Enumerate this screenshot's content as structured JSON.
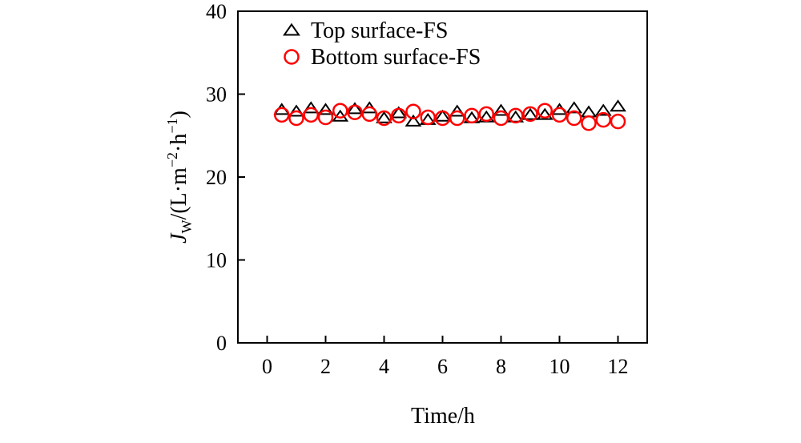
{
  "chart_data": {
    "type": "scatter",
    "xlabel": "Time/h",
    "ylabel": {
      "J": "J",
      "sub": "W",
      "rest1": "/(L·m",
      "sup1": "−2",
      "rest2": "·h",
      "sup2": "−1",
      "close": ")"
    },
    "xlim": [
      -1,
      13
    ],
    "ylim": [
      0,
      40
    ],
    "xticks": [
      0,
      2,
      4,
      6,
      8,
      10,
      12
    ],
    "yticks": [
      0,
      10,
      20,
      30,
      40
    ],
    "grid": false,
    "legend_position": "top-left",
    "series": [
      {
        "name": "Top surface-FS",
        "marker": "triangle",
        "color": "#000000",
        "x": [
          0.5,
          1,
          1.5,
          2,
          2.5,
          3,
          3.5,
          4,
          4.5,
          5,
          5.5,
          6,
          6.5,
          7,
          7.5,
          8,
          8.5,
          9,
          9.5,
          10,
          10.5,
          11,
          11.5,
          12
        ],
        "y": [
          28.0,
          27.8,
          28.2,
          28.0,
          27.2,
          28.1,
          28.2,
          27.0,
          27.6,
          26.6,
          26.8,
          27.2,
          27.8,
          27.0,
          27.1,
          27.9,
          27.1,
          27.4,
          27.4,
          28.0,
          28.2,
          27.7,
          27.9,
          28.4
        ]
      },
      {
        "name": "Bottom surface-FS",
        "marker": "circle",
        "color": "#ff0000",
        "x": [
          0.5,
          1,
          1.5,
          2,
          2.5,
          3,
          3.5,
          4,
          4.5,
          5,
          5.5,
          6,
          6.5,
          7,
          7.5,
          8,
          8.5,
          9,
          9.5,
          10,
          10.5,
          11,
          11.5,
          12
        ],
        "y": [
          27.5,
          27.1,
          27.5,
          27.2,
          28.0,
          27.8,
          27.6,
          27.1,
          27.4,
          27.9,
          27.2,
          27.1,
          27.1,
          27.4,
          27.6,
          27.1,
          27.4,
          27.6,
          28.0,
          27.5,
          27.1,
          26.5,
          26.9,
          26.7
        ]
      }
    ]
  }
}
